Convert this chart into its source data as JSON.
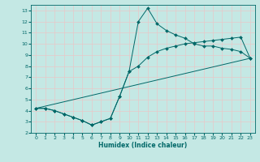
{
  "xlabel": "Humidex (Indice chaleur)",
  "ylabel": "",
  "xlim": [
    -0.5,
    23.5
  ],
  "ylim": [
    2,
    13.5
  ],
  "xticks": [
    0,
    1,
    2,
    3,
    4,
    5,
    6,
    7,
    8,
    9,
    10,
    11,
    12,
    13,
    14,
    15,
    16,
    17,
    18,
    19,
    20,
    21,
    22,
    23
  ],
  "yticks": [
    2,
    3,
    4,
    5,
    6,
    7,
    8,
    9,
    10,
    11,
    12,
    13
  ],
  "bg_color": "#c4e8e4",
  "grid_color": "#b0d8d4",
  "line_color": "#006868",
  "line1_x": [
    0,
    1,
    2,
    3,
    4,
    5,
    6,
    7,
    8,
    9,
    10,
    11,
    12,
    13,
    14,
    15,
    16,
    17,
    18,
    19,
    20,
    21,
    22,
    23
  ],
  "line1_y": [
    4.2,
    4.2,
    4.0,
    3.7,
    3.4,
    3.1,
    2.7,
    3.0,
    3.3,
    5.3,
    7.5,
    12.0,
    13.2,
    11.8,
    11.2,
    10.8,
    10.5,
    10.0,
    9.8,
    9.8,
    9.6,
    9.5,
    9.3,
    8.7
  ],
  "line2_x": [
    0,
    1,
    2,
    3,
    4,
    5,
    6,
    7,
    8,
    9,
    10,
    11,
    12,
    13,
    14,
    15,
    16,
    17,
    18,
    19,
    20,
    21,
    22,
    23
  ],
  "line2_y": [
    4.2,
    4.2,
    4.0,
    3.7,
    3.4,
    3.1,
    2.7,
    3.0,
    3.3,
    5.3,
    7.5,
    8.0,
    8.8,
    9.3,
    9.6,
    9.8,
    10.0,
    10.1,
    10.2,
    10.3,
    10.4,
    10.5,
    10.6,
    8.7
  ],
  "line3_x": [
    0,
    23
  ],
  "line3_y": [
    4.2,
    8.7
  ],
  "marker": "D",
  "markersize": 2.0
}
